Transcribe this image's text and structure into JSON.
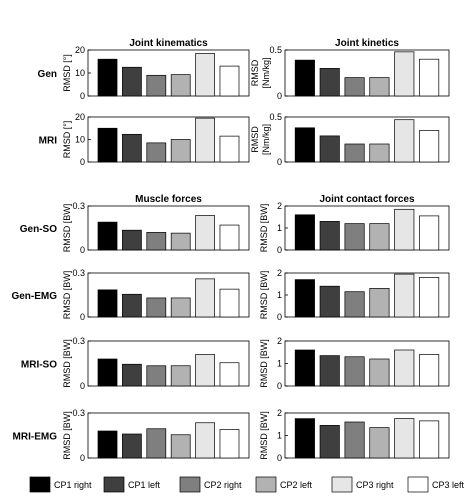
{
  "chart_data": {
    "type": "bar",
    "categories": [
      "CP1 right",
      "CP1 left",
      "CP2 right",
      "CP2 left",
      "CP3 right",
      "CP3 left"
    ],
    "colors": [
      "#000000",
      "#3f3f3f",
      "#7f7f7f",
      "#b2b2b2",
      "#e6e6e6",
      "#ffffff"
    ],
    "panels": [
      {
        "row": "Gen",
        "column_title": "Joint kinematics",
        "ylabel": "RMSD [°]",
        "ylim": [
          0,
          20
        ],
        "yticks": [
          0,
          10,
          20
        ],
        "values": [
          16,
          12.5,
          9,
          9.3,
          18.5,
          13
        ]
      },
      {
        "row": "Gen",
        "column_title": "Joint kinetics",
        "ylabel_lines": [
          "RMSD",
          "[Nm/kg]"
        ],
        "ylim": [
          0,
          0.5
        ],
        "yticks": [
          0,
          0.5
        ],
        "values": [
          0.39,
          0.3,
          0.2,
          0.2,
          0.48,
          0.4
        ]
      },
      {
        "row": "MRI",
        "ylabel": "RMSD [°]",
        "ylim": [
          0,
          20
        ],
        "yticks": [
          0,
          10,
          20
        ],
        "values": [
          15,
          12.3,
          8.5,
          10,
          19.5,
          11.5
        ]
      },
      {
        "row": "MRI",
        "ylabel_lines": [
          "RMSD",
          "[Nm/kg]"
        ],
        "ylim": [
          0,
          0.5
        ],
        "yticks": [
          0,
          0.5
        ],
        "values": [
          0.38,
          0.29,
          0.2,
          0.2,
          0.47,
          0.35
        ]
      },
      {
        "row": "Gen-SO",
        "column_title": "Muscle forces",
        "ylabel": "RMSD [BW]",
        "ylim": [
          0,
          0.3
        ],
        "yticks": [
          0,
          0.3
        ],
        "values": [
          0.19,
          0.135,
          0.12,
          0.115,
          0.235,
          0.17
        ]
      },
      {
        "row": "Gen-SO",
        "column_title": "Joint contact forces",
        "ylabel": "RMSD [BW]",
        "ylim": [
          0,
          2
        ],
        "yticks": [
          0,
          1,
          2
        ],
        "values": [
          1.6,
          1.3,
          1.2,
          1.2,
          1.85,
          1.55
        ]
      },
      {
        "row": "Gen-EMG",
        "ylabel": "RMSD [BW]",
        "ylim": [
          0,
          0.3
        ],
        "yticks": [
          0,
          0.3
        ],
        "values": [
          0.185,
          0.155,
          0.13,
          0.13,
          0.26,
          0.19
        ]
      },
      {
        "row": "Gen-EMG",
        "ylabel": "RMSD [BW]",
        "ylim": [
          0,
          2
        ],
        "yticks": [
          0,
          1,
          2
        ],
        "values": [
          1.7,
          1.4,
          1.15,
          1.3,
          1.95,
          1.8
        ]
      },
      {
        "row": "MRI-SO",
        "ylabel": "RMSD [BW]",
        "ylim": [
          0,
          0.3
        ],
        "yticks": [
          0,
          0.3
        ],
        "values": [
          0.18,
          0.145,
          0.135,
          0.135,
          0.21,
          0.155
        ]
      },
      {
        "row": "MRI-SO",
        "ylabel": "RMSD [BW]",
        "ylim": [
          0,
          2
        ],
        "yticks": [
          0,
          1,
          2
        ],
        "values": [
          1.6,
          1.35,
          1.3,
          1.2,
          1.6,
          1.4
        ]
      },
      {
        "row": "MRI-EMG",
        "ylabel": "RMSD [BW]",
        "ylim": [
          0,
          0.3
        ],
        "yticks": [
          0,
          0.3
        ],
        "values": [
          0.18,
          0.16,
          0.195,
          0.155,
          0.235,
          0.19
        ]
      },
      {
        "row": "MRI-EMG",
        "ylabel": "RMSD [BW]",
        "ylim": [
          0,
          2
        ],
        "yticks": [
          0,
          1,
          2
        ],
        "values": [
          1.75,
          1.45,
          1.6,
          1.35,
          1.75,
          1.65
        ]
      }
    ],
    "legend": [
      "CP1 right",
      "CP1 left",
      "CP2 right",
      "CP2 left",
      "CP3 right",
      "CP3 left"
    ],
    "legend_position": "bottom",
    "grid": false
  }
}
